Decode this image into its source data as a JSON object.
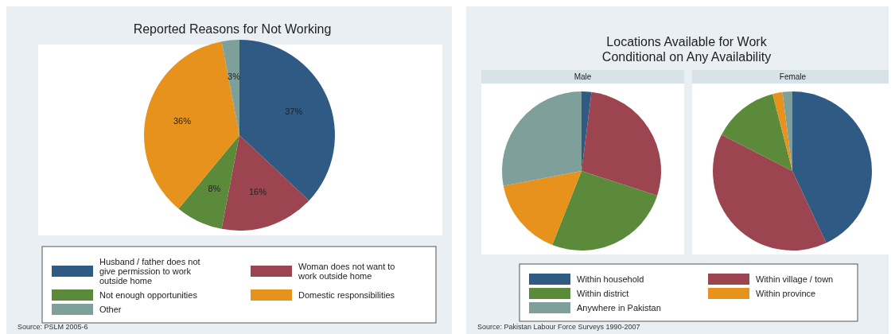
{
  "chart_data": [
    {
      "type": "pie",
      "title": "Reported Reasons for Not Working",
      "categories": [
        "Husband / father does not give permission to work outside home",
        "Woman does not want to work outside home",
        "Not enough opportunities",
        "Domestic responsibilities",
        "Other"
      ],
      "values": [
        37,
        16,
        8,
        36,
        3
      ],
      "colors": [
        "#2e5a84",
        "#9c4450",
        "#5a8a3a",
        "#e8921e",
        "#7fa09a"
      ],
      "value_labels": [
        "37%",
        "16%",
        "8%",
        "36%",
        "3%"
      ],
      "legend": "bottom",
      "annotations": [
        "Source: PSLM 2005-6"
      ]
    },
    {
      "type": "pie",
      "title": "Locations Available for Work\nConditional on Any Availability",
      "subtitle": "Male",
      "categories": [
        null,
        null,
        null,
        null,
        null
      ],
      "values": [
        2,
        28,
        26,
        16,
        28
      ],
      "colors": [
        "#2e5a84",
        "#9c4450",
        "#5a8a3a",
        "#e8921e",
        "#7fa09a"
      ]
    },
    {
      "type": "pie",
      "subtitle": "Female",
      "categories": [
        "Within household",
        "Within village / town",
        "Within district",
        "Within province",
        "Anywhere in Pakistan"
      ],
      "values": [
        43,
        39.5,
        13.5,
        2,
        2
      ],
      "colors": [
        "#2e5a84",
        "#9c4450",
        "#5a8a3a",
        "#e8921e",
        "#7fa09a"
      ],
      "legend": "bottom",
      "annotations": [
        "Source: Pakistan Labour Force Surveys 1990-2007"
      ]
    }
  ]
}
